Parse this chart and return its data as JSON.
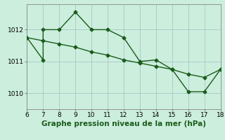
{
  "background_color": "#cceedd",
  "line_color": "#1a5c1a",
  "grid_color": "#aacccc",
  "x_min": 6,
  "x_max": 18,
  "y_min": 1009.5,
  "y_max": 1012.8,
  "y_ticks": [
    1010,
    1011,
    1012
  ],
  "x_ticks": [
    6,
    7,
    8,
    9,
    10,
    11,
    12,
    13,
    14,
    15,
    16,
    17,
    18
  ],
  "xlabel": "Graphe pression niveau de la mer (hPa)",
  "series1_x": [
    6,
    7,
    7,
    8,
    9,
    10,
    11,
    12,
    13,
    14,
    15,
    16,
    17,
    18
  ],
  "series1_y": [
    1011.75,
    1011.05,
    1012.0,
    1012.0,
    1012.55,
    1012.0,
    1012.0,
    1011.75,
    1011.0,
    1011.05,
    1010.75,
    1010.05,
    1010.05,
    1010.75
  ],
  "series2_x": [
    6,
    7,
    8,
    9,
    10,
    11,
    12,
    13,
    14,
    15,
    16,
    17,
    18
  ],
  "series2_y": [
    1011.75,
    1011.65,
    1011.55,
    1011.45,
    1011.3,
    1011.2,
    1011.05,
    1010.95,
    1010.85,
    1010.75,
    1010.6,
    1010.5,
    1010.75
  ],
  "marker": "D",
  "markersize": 2.5,
  "linewidth": 1.0,
  "xlabel_fontsize": 7.5,
  "tick_fontsize": 6.5
}
